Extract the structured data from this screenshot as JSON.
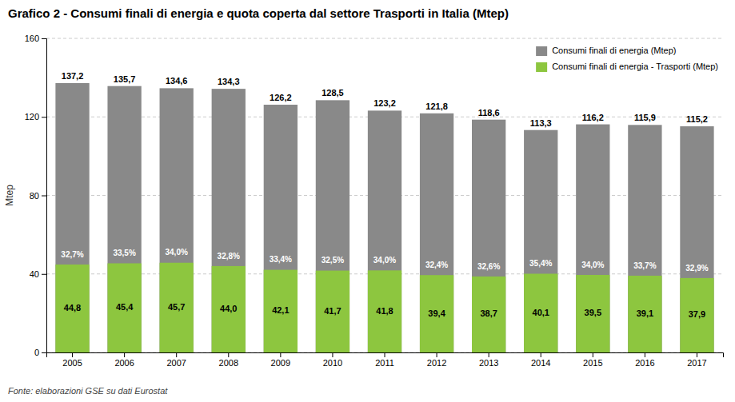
{
  "chart_data": {
    "type": "bar",
    "title": "Grafico 2 - Consumi finali di energia e quota coperta dal settore Trasporti in Italia (Mtep)",
    "categories": [
      "2005",
      "2006",
      "2007",
      "2008",
      "2009",
      "2010",
      "2011",
      "2012",
      "2013",
      "2014",
      "2015",
      "2016",
      "2017"
    ],
    "series": [
      {
        "name": "Consumi finali di energia (Mtep)",
        "color": "#898989",
        "values": [
          137.2,
          135.7,
          134.6,
          134.3,
          126.2,
          128.5,
          123.2,
          121.8,
          118.6,
          113.3,
          116.2,
          115.9,
          115.2
        ],
        "value_labels": [
          "137,2",
          "135,7",
          "134,6",
          "134,3",
          "126,2",
          "128,5",
          "123,2",
          "121,8",
          "118,6",
          "113,3",
          "116,2",
          "115,9",
          "115,2"
        ]
      },
      {
        "name": "Consumi finali di energia - Trasporti (Mtep)",
        "color": "#8DC63F",
        "values": [
          44.8,
          45.4,
          45.7,
          44.0,
          42.1,
          41.7,
          41.8,
          39.4,
          38.7,
          40.1,
          39.5,
          39.1,
          37.9
        ],
        "value_labels": [
          "44,8",
          "45,4",
          "45,7",
          "44,0",
          "42,1",
          "41,7",
          "41,8",
          "39,4",
          "38,7",
          "40,1",
          "39,5",
          "39,1",
          "37,9"
        ],
        "shares": [
          32.7,
          33.5,
          34.0,
          32.8,
          33.4,
          32.5,
          34.0,
          32.4,
          32.6,
          35.4,
          34.0,
          33.7,
          32.9
        ],
        "share_labels": [
          "32,7%",
          "33,5%",
          "34,0%",
          "32,8%",
          "33,4%",
          "32,5%",
          "34,0%",
          "32,4%",
          "32,6%",
          "35,4%",
          "34,0%",
          "33,7%",
          "32,9%"
        ]
      }
    ],
    "ylabel": "Mtep",
    "ylim": [
      0,
      160
    ],
    "yticks": [
      0,
      40,
      80,
      120,
      160
    ],
    "grid": true,
    "legend": "upper right",
    "stacked": false,
    "data_labels": true,
    "footnote": "Fonte: elaborazioni GSE su dati Eurostat"
  }
}
